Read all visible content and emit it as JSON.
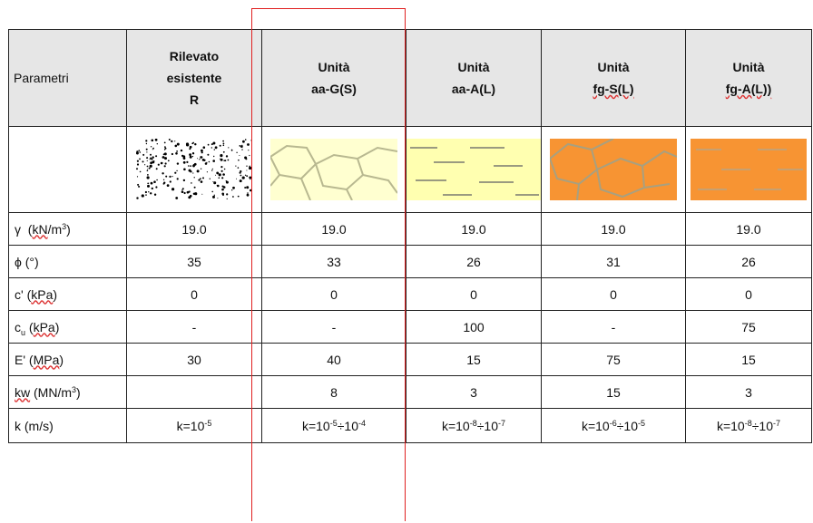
{
  "header": {
    "param": "Parametri",
    "col1": [
      "Rilevato",
      "esistente",
      "R"
    ],
    "col2": [
      "Unità",
      "aa-G(S)"
    ],
    "col3": [
      "Unità",
      "aa-A(L)"
    ],
    "col4": [
      "Unità",
      "fg-S(L)"
    ],
    "col5": [
      "Unità",
      "fg-A(L))"
    ]
  },
  "rows": {
    "gamma": {
      "symbol": "γ",
      "unit_a": "kN",
      "unit_b": "/m",
      "unit_exp": "3",
      "values": [
        "19.0",
        "19.0",
        "19.0",
        "19.0",
        "19.0"
      ]
    },
    "phi": {
      "label": "ϕ (°)",
      "values": [
        "35",
        "33",
        "26",
        "31",
        "26"
      ]
    },
    "c": {
      "label_a": "c' (",
      "label_unit": "kPa",
      "label_b": ")",
      "values": [
        "0",
        "0",
        "0",
        "0",
        "0"
      ]
    },
    "cu": {
      "label_a": "c",
      "label_sub": "u",
      "label_b": " (",
      "label_unit": "kPa",
      "label_c": ")",
      "values": [
        "-",
        "-",
        "100",
        "-",
        "75"
      ]
    },
    "E": {
      "label_a": "E' (",
      "label_unit": "MPa",
      "label_b": ")",
      "values": [
        "30",
        "40",
        "15",
        "75",
        "15"
      ]
    },
    "kw": {
      "label_kw": "kw",
      "label_b": " (MN/m",
      "label_exp": "3",
      "label_c": ")",
      "values": [
        "",
        "8",
        "3",
        "15",
        "3"
      ]
    },
    "k": {
      "label": "k (m/s)",
      "values": [
        {
          "base": "k=10",
          "exp1": "-5",
          "mid": "",
          "exp2": ""
        },
        {
          "base": "k=10",
          "exp1": "-5",
          "mid": "÷10",
          "exp2": "-4"
        },
        {
          "base": "k=10",
          "exp1": "-8",
          "mid": "÷10",
          "exp2": "-7"
        },
        {
          "base": "k=10",
          "exp1": "-6",
          "mid": "÷10",
          "exp2": "-5"
        },
        {
          "base": "k=10",
          "exp1": "-8",
          "mid": "÷10",
          "exp2": "-7"
        }
      ]
    }
  },
  "swatches": [
    {
      "icon": "gravel-pattern-icon",
      "fill": "#ffffff",
      "stroke": "#000000"
    },
    {
      "icon": "gravel-sand-pattern-icon",
      "fill": "#ffffd0",
      "stroke": "#b8b890"
    },
    {
      "icon": "gravel-silt-pattern-icon",
      "fill": "#ffffb0",
      "stroke": "#9a9a80"
    },
    {
      "icon": "sand-silt-pattern-icon",
      "fill": "#f79433",
      "stroke": "#a8a080"
    },
    {
      "icon": "silt-clay-pattern-icon",
      "fill": "#f79433",
      "stroke": "#c8a070"
    }
  ],
  "colors": {
    "header_bg": "#e6e6e6",
    "highlight_border": "#e02020"
  }
}
